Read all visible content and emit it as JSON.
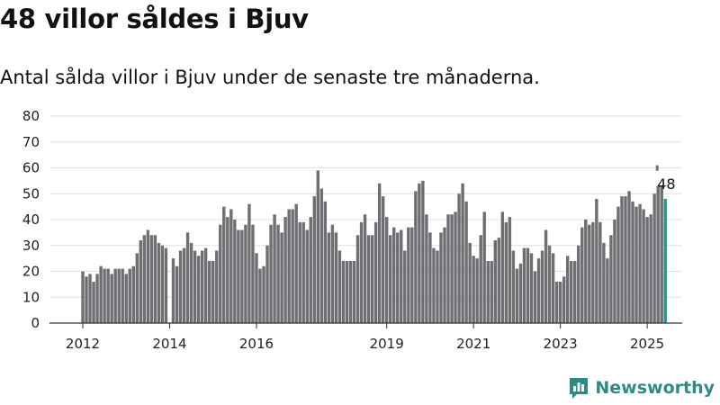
{
  "title": "48 villor såldes i Bjuv",
  "subtitle": "Antal sålda villor i Bjuv under de senaste tre månaderna.",
  "brand": "Newsworthy",
  "colors": {
    "bar": "#6e6e73",
    "highlight": "#2a918c",
    "grid": "#e0e0e0",
    "axis": "#333333",
    "brand": "#2f8a85"
  },
  "chart_data": {
    "type": "bar",
    "x_start": "2012-01",
    "frequency": "monthly",
    "ylim": [
      0,
      80
    ],
    "yticks": [
      0,
      10,
      20,
      30,
      40,
      50,
      60,
      70,
      80
    ],
    "xtick_labels": [
      "2012",
      "2014",
      "2016",
      "2019",
      "2021",
      "2023",
      "2025"
    ],
    "values": [
      20,
      18,
      19,
      16,
      19,
      22,
      21,
      21,
      19,
      21,
      21,
      21,
      19,
      21,
      22,
      27,
      32,
      34,
      36,
      34,
      34,
      31,
      30,
      29,
      null,
      25,
      22,
      28,
      29,
      35,
      31,
      28,
      26,
      28,
      29,
      24,
      24,
      28,
      38,
      45,
      41,
      44,
      40,
      36,
      36,
      38,
      46,
      38,
      27,
      21,
      22,
      30,
      38,
      42,
      38,
      35,
      41,
      44,
      44,
      46,
      39,
      39,
      36,
      41,
      49,
      59,
      52,
      47,
      35,
      38,
      35,
      28,
      24,
      24,
      24,
      24,
      34,
      39,
      42,
      34,
      34,
      39,
      54,
      49,
      41,
      34,
      37,
      35,
      36,
      28,
      37,
      37,
      51,
      54,
      55,
      42,
      35,
      29,
      28,
      35,
      37,
      42,
      42,
      43,
      50,
      54,
      47,
      31,
      26,
      25,
      34,
      43,
      24,
      24,
      32,
      33,
      43,
      39,
      41,
      28,
      21,
      23,
      29,
      29,
      27,
      20,
      25,
      28,
      36,
      30,
      27,
      16,
      16,
      18,
      26,
      24,
      24,
      30,
      37,
      40,
      38,
      39,
      48,
      39,
      31,
      25,
      34,
      40,
      45,
      49,
      49,
      51,
      47,
      45,
      46,
      44,
      41,
      42,
      50,
      53,
      53,
      48
    ],
    "highlight_index": -1,
    "annotation": {
      "label": "48",
      "value": 48
    },
    "marker_value": 61
  }
}
